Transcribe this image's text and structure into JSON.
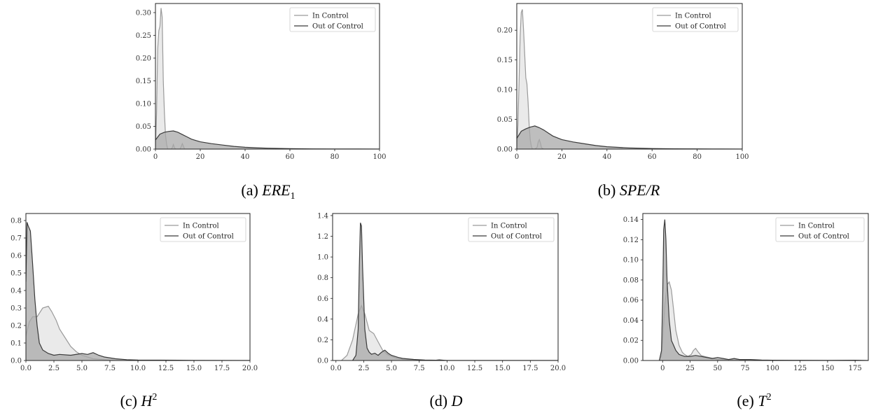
{
  "figure": {
    "captions": [
      {
        "label": "(a)",
        "math": "ERE",
        "sub": "1",
        "sup": ""
      },
      {
        "label": "(b)",
        "math": "SPE/R",
        "sub": "",
        "sup": ""
      },
      {
        "label": "(c)",
        "math": "H",
        "sub": "",
        "sup": "2"
      },
      {
        "label": "(d)",
        "math": "D",
        "sub": "",
        "sup": ""
      },
      {
        "label": "(e)",
        "math": "T",
        "sub": "",
        "sup": "2"
      }
    ]
  },
  "colors": {
    "in_control_line": "#9a9a9a",
    "in_control_fill": "#e6e6e6",
    "out_control_line": "#3a3a3a",
    "out_control_fill": "#a8a8a8"
  },
  "chart_data": [
    {
      "type": "area",
      "legend": "top-right",
      "grid": false,
      "xlim": [
        0,
        100
      ],
      "ylim": [
        0,
        0.32
      ],
      "xticks": [
        0,
        20,
        40,
        60,
        80,
        100
      ],
      "xtick_labels": [
        "0",
        "20",
        "40",
        "60",
        "80",
        "100"
      ],
      "yticks": [
        0,
        0.05,
        0.1,
        0.15,
        0.2,
        0.25,
        0.3
      ],
      "ytick_labels": [
        "0.00",
        "0.05",
        "0.10",
        "0.15",
        "0.20",
        "0.25",
        "0.30"
      ],
      "series": [
        {
          "name": "In Control",
          "x": [
            0,
            0.5,
            1,
            1.5,
            2,
            2.5,
            3,
            3.5,
            4,
            4.5,
            5,
            5.5,
            6,
            6.5,
            7,
            7.5,
            8,
            8.5,
            9,
            10,
            11,
            11.5,
            12,
            12.5,
            13,
            14,
            100
          ],
          "y": [
            0,
            0.08,
            0.22,
            0.26,
            0.27,
            0.31,
            0.29,
            0.15,
            0.08,
            0.03,
            0.01,
            0,
            0,
            0,
            0,
            0.003,
            0.01,
            0.003,
            0,
            0,
            0,
            0.006,
            0.012,
            0.006,
            0,
            0,
            0
          ]
        },
        {
          "name": "Out of Control",
          "x": [
            0,
            2,
            4,
            6,
            8,
            10,
            12,
            14,
            16,
            18,
            20,
            25,
            30,
            35,
            40,
            45,
            50,
            60,
            70,
            80,
            90,
            100
          ],
          "y": [
            0.02,
            0.033,
            0.037,
            0.039,
            0.04,
            0.037,
            0.032,
            0.027,
            0.022,
            0.019,
            0.016,
            0.012,
            0.009,
            0.006,
            0.004,
            0.003,
            0.002,
            0.001,
            0.0005,
            0.0003,
            0.0001,
            0
          ]
        }
      ]
    },
    {
      "type": "area",
      "legend": "top-right",
      "grid": false,
      "xlim": [
        0,
        100
      ],
      "ylim": [
        0,
        0.245
      ],
      "xticks": [
        0,
        20,
        40,
        60,
        80,
        100
      ],
      "xtick_labels": [
        "0",
        "20",
        "40",
        "60",
        "80",
        "100"
      ],
      "yticks": [
        0,
        0.05,
        0.1,
        0.15,
        0.2
      ],
      "ytick_labels": [
        "0.00",
        "0.05",
        "0.10",
        "0.15",
        "0.20"
      ],
      "series": [
        {
          "name": "In Control",
          "x": [
            0,
            0.5,
            1,
            1.5,
            2,
            2.5,
            3,
            3.5,
            4,
            4.5,
            5,
            5.5,
            6,
            6.5,
            7,
            8,
            9,
            9.5,
            10,
            10.5,
            11,
            12,
            100
          ],
          "y": [
            0,
            0.04,
            0.11,
            0.19,
            0.23,
            0.235,
            0.2,
            0.16,
            0.12,
            0.11,
            0.08,
            0.04,
            0.015,
            0.004,
            0,
            0,
            0.003,
            0.012,
            0.016,
            0.01,
            0.002,
            0,
            0
          ]
        },
        {
          "name": "Out of Control",
          "x": [
            0,
            2,
            4,
            6,
            8,
            10,
            12,
            14,
            16,
            18,
            20,
            25,
            30,
            35,
            40,
            45,
            50,
            60,
            70,
            80,
            90,
            100
          ],
          "y": [
            0.018,
            0.03,
            0.034,
            0.037,
            0.039,
            0.036,
            0.032,
            0.027,
            0.022,
            0.019,
            0.016,
            0.012,
            0.009,
            0.006,
            0.004,
            0.003,
            0.002,
            0.001,
            0.0005,
            0.0003,
            0.0001,
            0
          ]
        }
      ]
    },
    {
      "type": "area",
      "legend": "top-right",
      "grid": false,
      "xlim": [
        0,
        20
      ],
      "ylim": [
        0,
        0.84
      ],
      "xticks": [
        0,
        2.5,
        5,
        7.5,
        10,
        12.5,
        15,
        17.5,
        20
      ],
      "xtick_labels": [
        "0.0",
        "2.5",
        "5.0",
        "7.5",
        "10.0",
        "12.5",
        "15.0",
        "17.5",
        "20.0"
      ],
      "yticks": [
        0,
        0.1,
        0.2,
        0.3,
        0.4,
        0.5,
        0.6,
        0.7,
        0.8
      ],
      "ytick_labels": [
        "0.0",
        "0.1",
        "0.2",
        "0.3",
        "0.4",
        "0.5",
        "0.6",
        "0.7",
        "0.8"
      ],
      "series": [
        {
          "name": "In Control",
          "x": [
            0,
            0.3,
            0.6,
            1,
            1.5,
            2,
            2.3,
            2.7,
            3,
            3.5,
            4,
            4.5,
            5,
            6,
            7,
            8,
            20
          ],
          "y": [
            0.14,
            0.22,
            0.25,
            0.25,
            0.3,
            0.31,
            0.28,
            0.23,
            0.18,
            0.13,
            0.08,
            0.05,
            0.03,
            0.01,
            0.005,
            0,
            0
          ]
        },
        {
          "name": "Out of Control",
          "x": [
            0,
            0.1,
            0.2,
            0.4,
            0.6,
            0.8,
            1,
            1.2,
            1.5,
            2,
            2.5,
            3,
            4,
            5,
            5.5,
            6,
            6.5,
            7,
            8,
            9,
            10,
            12,
            15,
            20
          ],
          "y": [
            0.45,
            0.79,
            0.77,
            0.74,
            0.55,
            0.35,
            0.2,
            0.1,
            0.06,
            0.04,
            0.03,
            0.035,
            0.03,
            0.04,
            0.035,
            0.045,
            0.03,
            0.02,
            0.01,
            0.005,
            0.003,
            0.002,
            0.001,
            0
          ]
        }
      ]
    },
    {
      "type": "area",
      "legend": "top-right",
      "grid": false,
      "xlim": [
        -0.3,
        20
      ],
      "ylim": [
        0,
        1.42
      ],
      "xticks": [
        0,
        2.5,
        5,
        7.5,
        10,
        12.5,
        15,
        17.5,
        20
      ],
      "xtick_labels": [
        "0.0",
        "2.5",
        "5.0",
        "7.5",
        "10.0",
        "12.5",
        "15.0",
        "17.5",
        "20.0"
      ],
      "yticks": [
        0,
        0.2,
        0.4,
        0.6,
        0.8,
        1,
        1.2,
        1.4
      ],
      "ytick_labels": [
        "0.0",
        "0.2",
        "0.4",
        "0.6",
        "0.8",
        "1.0",
        "1.2",
        "1.4"
      ],
      "series": [
        {
          "name": "In Control",
          "x": [
            0.5,
            1,
            1.5,
            2,
            2.3,
            2.6,
            3,
            3.4,
            3.8,
            4.2,
            4.6,
            5,
            5.5,
            6,
            7,
            8,
            10,
            20
          ],
          "y": [
            0,
            0.05,
            0.2,
            0.45,
            0.53,
            0.45,
            0.29,
            0.26,
            0.18,
            0.1,
            0.06,
            0.04,
            0.02,
            0.01,
            0.005,
            0,
            0,
            0
          ]
        },
        {
          "name": "Out of Control",
          "x": [
            1.5,
            1.8,
            2,
            2.1,
            2.2,
            2.3,
            2.4,
            2.6,
            2.8,
            3,
            3.2,
            3.5,
            3.8,
            4.1,
            4.4,
            4.7,
            5,
            5.3,
            5.6,
            6,
            7,
            8,
            9,
            9.3,
            10,
            20
          ],
          "y": [
            0,
            0.05,
            0.3,
            0.9,
            1.33,
            1.3,
            0.9,
            0.3,
            0.12,
            0.08,
            0.06,
            0.07,
            0.05,
            0.08,
            0.1,
            0.07,
            0.05,
            0.04,
            0.03,
            0.02,
            0.01,
            0.005,
            0.003,
            0.006,
            0,
            0
          ]
        }
      ]
    },
    {
      "type": "area",
      "legend": "top-right",
      "grid": false,
      "xlim": [
        -18,
        187
      ],
      "ylim": [
        0,
        0.146
      ],
      "xticks": [
        0,
        25,
        50,
        75,
        100,
        125,
        150,
        175
      ],
      "xtick_labels": [
        "0",
        "25",
        "50",
        "75",
        "100",
        "125",
        "150",
        "175"
      ],
      "yticks": [
        0,
        0.02,
        0.04,
        0.06,
        0.08,
        0.1,
        0.12,
        0.14
      ],
      "ytick_labels": [
        "0.00",
        "0.02",
        "0.04",
        "0.06",
        "0.08",
        "0.10",
        "0.12",
        "0.14"
      ],
      "series": [
        {
          "name": "In Control",
          "x": [
            -3,
            -1,
            0,
            2,
            4,
            6,
            8,
            10,
            12,
            15,
            18,
            20,
            23,
            26,
            28,
            30,
            32,
            35,
            38,
            42,
            46,
            50,
            60,
            70,
            80,
            100,
            120,
            150,
            187
          ],
          "y": [
            0,
            0.005,
            0.02,
            0.055,
            0.075,
            0.078,
            0.07,
            0.05,
            0.03,
            0.015,
            0.008,
            0.006,
            0.004,
            0.006,
            0.01,
            0.012,
            0.009,
            0.005,
            0.004,
            0.003,
            0.002,
            0.001,
            0.001,
            0.0005,
            0,
            0,
            0,
            0,
            0
          ]
        },
        {
          "name": "Out of Control",
          "x": [
            -3,
            -1,
            0,
            1,
            2,
            3,
            4,
            6,
            8,
            10,
            12,
            15,
            20,
            25,
            30,
            35,
            40,
            45,
            50,
            55,
            60,
            65,
            70,
            80,
            90,
            100,
            120,
            150,
            175,
            187
          ],
          "y": [
            0,
            0.01,
            0.06,
            0.13,
            0.14,
            0.12,
            0.08,
            0.04,
            0.02,
            0.015,
            0.01,
            0.006,
            0.004,
            0.004,
            0.005,
            0.004,
            0.003,
            0.002,
            0.003,
            0.002,
            0.001,
            0.002,
            0.001,
            0.001,
            0.0005,
            0.0003,
            0.0002,
            0.0001,
            0.0003,
            0
          ]
        }
      ]
    }
  ]
}
